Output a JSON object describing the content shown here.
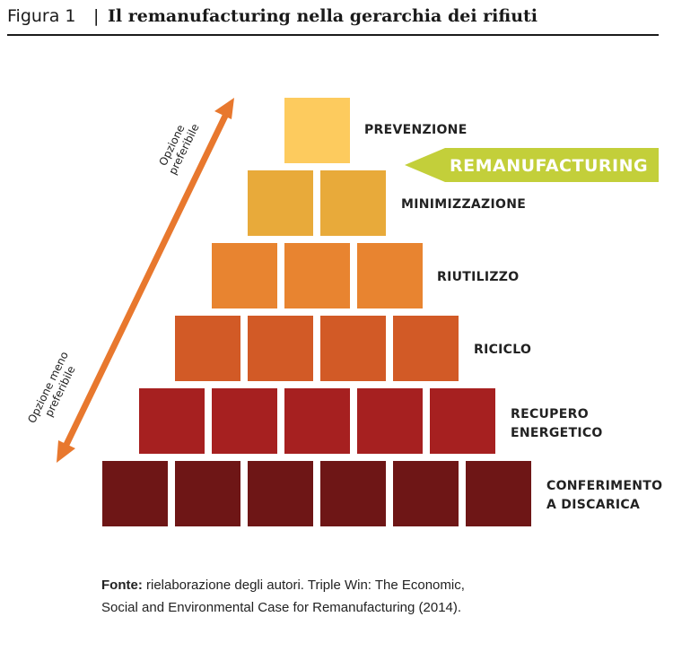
{
  "header": {
    "figure_label": "Figura 1",
    "separator": "|",
    "title": "Il remanufacturing nella gerarchia dei rifiuti"
  },
  "pyramid": {
    "levels": [
      {
        "label": "PREVENZIONE",
        "color": "#FDCB5E"
      },
      {
        "label": "MINIMIZZAZIONE",
        "color": "#E8AA3A"
      },
      {
        "label": "RIUTILIZZO",
        "color": "#E88430"
      },
      {
        "label": "RICICLO",
        "color": "#D25A26"
      },
      {
        "label": "RECUPERO ENERGETICO",
        "color": "#A62020"
      },
      {
        "label": "CONFERIMENTO A DISCARICA",
        "color": "#6E1616"
      }
    ]
  },
  "callout": {
    "label": "REMANUFACTURING",
    "color": "#C3CF3A"
  },
  "axis": {
    "top_label": "Opzione preferibile",
    "bottom_label": "Opzione meno preferibile",
    "color": "#E8782E"
  },
  "source": {
    "prefix": "Fonte:",
    "text": "rielaborazione degli autori. Triple Win: The Economic, Social and Environmental Case for Remanufacturing (2014)."
  }
}
